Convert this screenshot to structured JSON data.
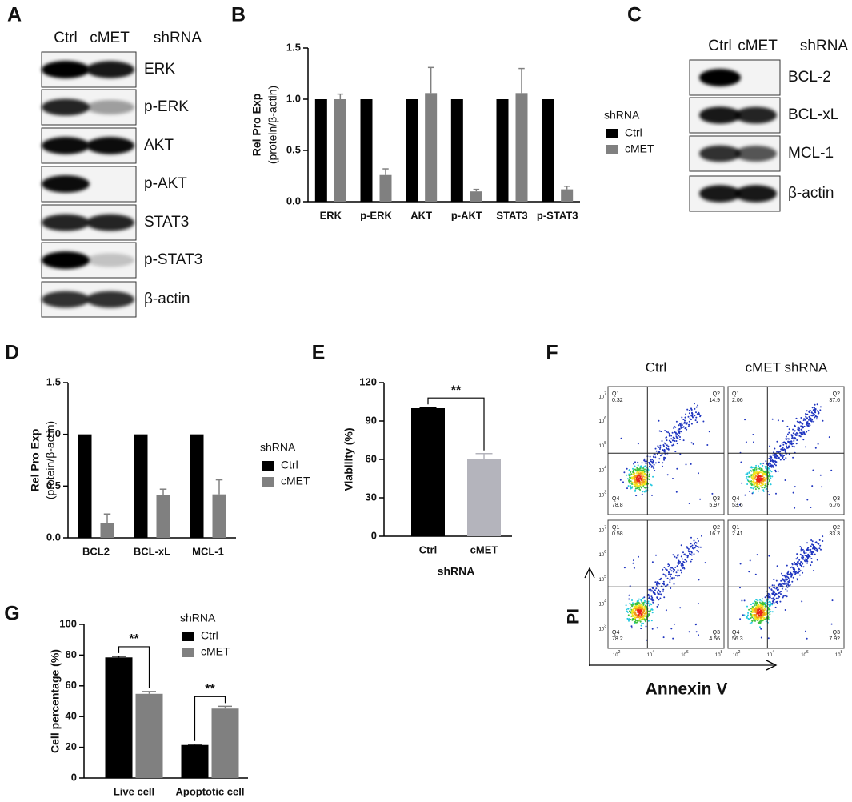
{
  "panel_labels": [
    "A",
    "B",
    "C",
    "D",
    "E",
    "F",
    "G"
  ],
  "blot_a": {
    "columns": [
      "Ctrl",
      "cMET",
      "shRNA"
    ],
    "rows": [
      "ERK",
      "p-ERK",
      "AKT",
      "p-AKT",
      "STAT3",
      "p-STAT3",
      "β-actin"
    ]
  },
  "blot_c": {
    "columns": [
      "Ctrl",
      "cMET",
      "shRNA"
    ],
    "rows": [
      "BCL-2",
      "BCL-xL",
      "MCL-1",
      "β-actin"
    ]
  },
  "chart_data": [
    {
      "type": "bar",
      "ylabel": "Rel Pro Exp",
      "ylabel_sub": "(protein/β-actin)",
      "categories": [
        "ERK",
        "p-ERK",
        "AKT",
        "p-AKT",
        "STAT3",
        "p-STAT3"
      ],
      "series": [
        {
          "name": "Ctrl",
          "color": "#000000",
          "values": [
            1,
            1,
            1,
            1,
            1,
            1
          ]
        },
        {
          "name": "cMET",
          "color": "#808080",
          "values": [
            1.0,
            0.26,
            1.06,
            0.1,
            1.06,
            0.12
          ],
          "errors": [
            0.05,
            0.06,
            0.25,
            0.02,
            0.24,
            0.03
          ]
        }
      ],
      "legend_title": "shRNA",
      "ylim": [
        0,
        1.5
      ],
      "yticks": [
        {
          "value": 0,
          "label": "0.0"
        },
        0.5,
        {
          "value": 1,
          "label": "1.0"
        },
        1.5
      ]
    },
    {
      "type": "bar",
      "ylabel": "Rel Pro Exp",
      "ylabel_sub": "(protein/β-actin)",
      "categories": [
        "BCL2",
        "BCL-xL",
        "MCL-1"
      ],
      "series": [
        {
          "name": "Ctrl",
          "color": "#000000",
          "values": [
            1,
            1,
            1
          ]
        },
        {
          "name": "cMET",
          "color": "#808080",
          "values": [
            0.14,
            0.41,
            0.42
          ],
          "errors": [
            0.09,
            0.06,
            0.14
          ]
        }
      ],
      "legend_title": "shRNA",
      "ylim": [
        0,
        1.5
      ],
      "yticks": [
        {
          "value": 0,
          "label": "0.0"
        },
        0.5,
        {
          "value": 1,
          "label": "1.0"
        },
        1.5
      ]
    },
    {
      "type": "bar",
      "ylabel": "Viability (%)",
      "xlabel": "shRNA",
      "categories": [
        "Ctrl",
        "cMET"
      ],
      "values": [
        100,
        60
      ],
      "errors": [
        0.5,
        4.5
      ],
      "colors": [
        "#000000",
        "#b4b4bc"
      ],
      "significance": [
        "**"
      ],
      "ylim": [
        0,
        120
      ],
      "yticks": [
        0,
        30,
        60,
        90,
        120
      ]
    },
    {
      "type": "bar",
      "ylabel": "Cell percentage (%)",
      "categories": [
        "Live cell",
        "Apoptotic cell"
      ],
      "series": [
        {
          "name": "Ctrl",
          "color": "#000000",
          "values": [
            78.5,
            21.5
          ],
          "errors": [
            0.7,
            0.5
          ]
        },
        {
          "name": "cMET",
          "color": "#808080",
          "values": [
            54.8,
            45.2
          ],
          "errors": [
            1.5,
            1.5
          ]
        }
      ],
      "legend_title": "shRNA",
      "significance": [
        "**",
        "**"
      ],
      "ylim": [
        0,
        100
      ],
      "yticks": [
        0,
        20,
        40,
        60,
        80,
        100
      ]
    }
  ],
  "flow": {
    "columns": [
      "Ctrl",
      "cMET shRNA"
    ],
    "ylabel": "PI",
    "xlabel": "Annexin V",
    "tick_base": "10",
    "xtick_exponents": [
      2,
      4,
      6,
      8
    ],
    "ytick_exponents": [
      3,
      4,
      5,
      6,
      7
    ],
    "quadrant_names": [
      "Q1",
      "Q2",
      "Q3",
      "Q4"
    ],
    "plots": [
      [
        0.32,
        14.9,
        5.97,
        78.8
      ],
      [
        2.06,
        37.6,
        6.76,
        53.6
      ],
      [
        0.58,
        16.7,
        4.56,
        78.2
      ],
      [
        2.41,
        33.3,
        7.92,
        56.3
      ]
    ]
  }
}
